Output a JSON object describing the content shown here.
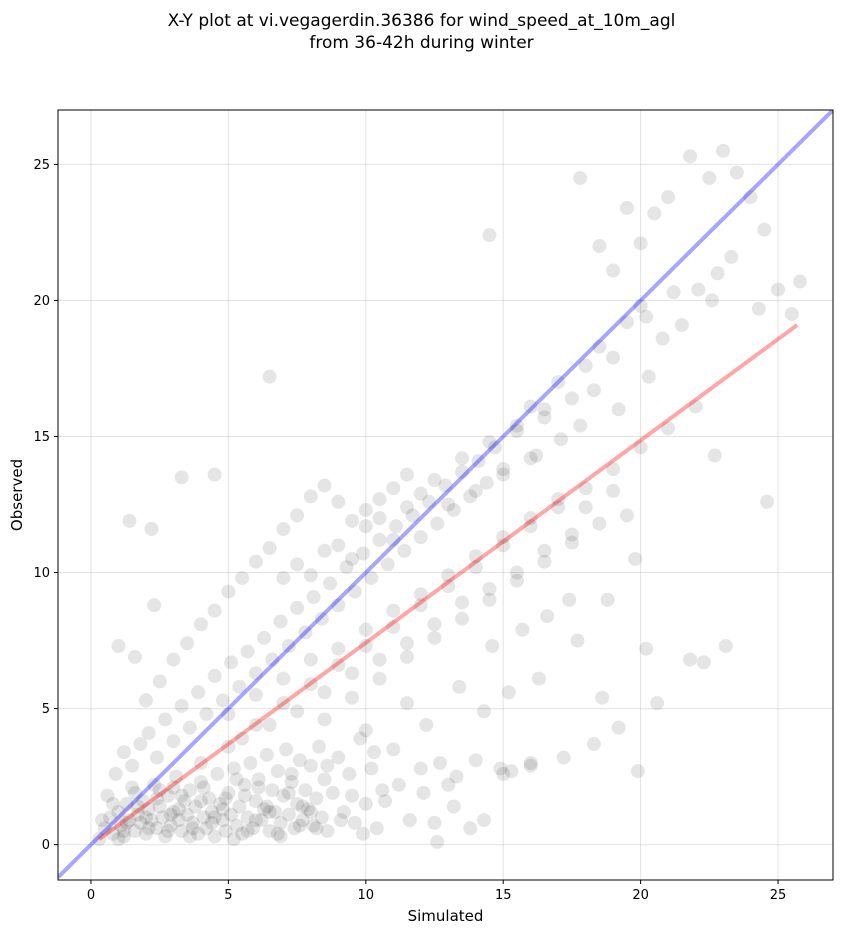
{
  "chart_data": {
    "type": "scatter",
    "title": [
      "X-Y plot at vi.vegagerdin.36386 for wind_speed_at_10m_agl",
      "from 36-42h during winter"
    ],
    "xlabel": "Simulated",
    "ylabel": "Observed",
    "xlim": [
      -1.2,
      27.0
    ],
    "ylim": [
      -1.3,
      27.0
    ],
    "xticks": [
      0,
      5,
      10,
      15,
      20,
      25
    ],
    "yticks": [
      0,
      5,
      10,
      15,
      20,
      25
    ],
    "grid": true,
    "marker_color": "#000000",
    "marker_alpha": 0.1,
    "identity_line": {
      "color": "#0000ff",
      "alpha": 0.35,
      "x": [
        -1.2,
        27.0
      ],
      "y": [
        -1.2,
        27.0
      ]
    },
    "fit_line": {
      "color": "#ff0000",
      "alpha": 0.35,
      "x": [
        0.3,
        25.7
      ],
      "y": [
        0.2,
        19.1
      ]
    },
    "points": [
      [
        0.5,
        0.6
      ],
      [
        0.7,
        1.0
      ],
      [
        0.8,
        0.4
      ],
      [
        1.0,
        1.2
      ],
      [
        1.1,
        0.7
      ],
      [
        1.2,
        0.3
      ],
      [
        1.3,
        1.5
      ],
      [
        1.4,
        0.9
      ],
      [
        1.5,
        2.1
      ],
      [
        1.6,
        0.5
      ],
      [
        1.7,
        1.1
      ],
      [
        1.8,
        0.8
      ],
      [
        1.9,
        1.6
      ],
      [
        2.0,
        0.4
      ],
      [
        2.1,
        1.3
      ],
      [
        2.2,
        0.9
      ],
      [
        2.3,
        2.2
      ],
      [
        2.4,
        0.6
      ],
      [
        2.5,
        1.4
      ],
      [
        2.6,
        1.0
      ],
      [
        2.7,
        0.3
      ],
      [
        2.8,
        1.8
      ],
      [
        2.9,
        0.7
      ],
      [
        3.0,
        1.2
      ],
      [
        3.1,
        2.5
      ],
      [
        3.2,
        0.9
      ],
      [
        3.3,
        0.5
      ],
      [
        3.4,
        1.6
      ],
      [
        3.5,
        1.1
      ],
      [
        3.6,
        2.0
      ],
      [
        3.7,
        0.8
      ],
      [
        3.8,
        1.4
      ],
      [
        3.9,
        0.4
      ],
      [
        4.0,
        2.3
      ],
      [
        4.1,
        1.0
      ],
      [
        4.2,
        0.6
      ],
      [
        4.3,
        1.7
      ],
      [
        4.4,
        1.2
      ],
      [
        4.5,
        0.3
      ],
      [
        4.6,
        2.6
      ],
      [
        4.7,
        1.5
      ],
      [
        4.8,
        0.9
      ],
      [
        4.9,
        0.5
      ],
      [
        5.0,
        1.9
      ],
      [
        5.1,
        1.1
      ],
      [
        5.2,
        2.8
      ],
      [
        5.3,
        0.7
      ],
      [
        5.4,
        1.4
      ],
      [
        5.5,
        0.4
      ],
      [
        5.6,
        2.2
      ],
      [
        5.7,
        1.0
      ],
      [
        5.8,
        3.0
      ],
      [
        5.9,
        0.6
      ],
      [
        6.0,
        1.6
      ],
      [
        6.1,
        2.4
      ],
      [
        6.2,
        0.9
      ],
      [
        6.3,
        1.3
      ],
      [
        6.4,
        3.3
      ],
      [
        6.5,
        0.5
      ],
      [
        6.6,
        2.0
      ],
      [
        6.7,
        1.2
      ],
      [
        6.8,
        2.7
      ],
      [
        6.9,
        0.8
      ],
      [
        7.0,
        1.8
      ],
      [
        7.1,
        3.5
      ],
      [
        7.2,
        1.1
      ],
      [
        7.3,
        2.3
      ],
      [
        7.4,
        0.6
      ],
      [
        7.5,
        1.5
      ],
      [
        7.6,
        3.1
      ],
      [
        7.7,
        0.9
      ],
      [
        7.8,
        2.0
      ],
      [
        7.9,
        1.3
      ],
      [
        8.0,
        2.9
      ],
      [
        8.1,
        0.7
      ],
      [
        8.2,
        1.7
      ],
      [
        8.3,
        3.6
      ],
      [
        8.4,
        1.0
      ],
      [
        8.5,
        2.4
      ],
      [
        8.6,
        0.5
      ],
      [
        8.8,
        1.9
      ],
      [
        9.0,
        3.2
      ],
      [
        9.2,
        1.2
      ],
      [
        9.4,
        2.6
      ],
      [
        9.6,
        0.8
      ],
      [
        9.8,
        3.9
      ],
      [
        10.0,
        1.5
      ],
      [
        10.2,
        2.8
      ],
      [
        10.4,
        0.6
      ],
      [
        10.6,
        2.0
      ],
      [
        0.3,
        0.2
      ],
      [
        0.6,
        1.8
      ],
      [
        0.9,
        2.6
      ],
      [
        1.2,
        3.4
      ],
      [
        1.5,
        2.9
      ],
      [
        1.8,
        3.7
      ],
      [
        2.1,
        4.1
      ],
      [
        2.4,
        3.2
      ],
      [
        2.7,
        4.6
      ],
      [
        3.0,
        3.8
      ],
      [
        3.3,
        5.1
      ],
      [
        3.6,
        4.3
      ],
      [
        3.9,
        5.6
      ],
      [
        4.2,
        4.8
      ],
      [
        4.5,
        6.2
      ],
      [
        4.8,
        5.3
      ],
      [
        5.1,
        6.7
      ],
      [
        5.4,
        5.8
      ],
      [
        5.7,
        7.1
      ],
      [
        6.0,
        6.3
      ],
      [
        6.3,
        7.6
      ],
      [
        6.6,
        6.8
      ],
      [
        6.9,
        8.2
      ],
      [
        7.2,
        7.3
      ],
      [
        7.5,
        8.7
      ],
      [
        7.8,
        7.8
      ],
      [
        8.1,
        9.1
      ],
      [
        8.4,
        8.3
      ],
      [
        8.7,
        9.6
      ],
      [
        9.0,
        8.8
      ],
      [
        9.3,
        10.2
      ],
      [
        9.6,
        9.3
      ],
      [
        9.9,
        10.7
      ],
      [
        10.2,
        9.8
      ],
      [
        10.5,
        11.2
      ],
      [
        10.8,
        10.3
      ],
      [
        11.1,
        11.7
      ],
      [
        11.4,
        10.8
      ],
      [
        11.7,
        12.1
      ],
      [
        12.0,
        11.3
      ],
      [
        12.3,
        12.6
      ],
      [
        12.6,
        11.8
      ],
      [
        12.9,
        13.2
      ],
      [
        13.2,
        12.3
      ],
      [
        13.5,
        13.7
      ],
      [
        13.8,
        12.8
      ],
      [
        14.1,
        14.1
      ],
      [
        14.4,
        13.3
      ],
      [
        14.7,
        14.6
      ],
      [
        15.0,
        13.8
      ],
      [
        2.0,
        5.3
      ],
      [
        2.5,
        6.0
      ],
      [
        3.0,
        6.8
      ],
      [
        3.5,
        7.4
      ],
      [
        4.0,
        8.1
      ],
      [
        4.5,
        8.6
      ],
      [
        5.0,
        9.3
      ],
      [
        5.5,
        9.8
      ],
      [
        6.0,
        10.4
      ],
      [
        6.5,
        10.9
      ],
      [
        7.0,
        11.6
      ],
      [
        7.5,
        12.1
      ],
      [
        8.0,
        12.8
      ],
      [
        8.5,
        13.2
      ],
      [
        9.0,
        12.6
      ],
      [
        9.5,
        11.9
      ],
      [
        10.0,
        12.3
      ],
      [
        10.5,
        12.7
      ],
      [
        11.0,
        13.1
      ],
      [
        11.5,
        13.6
      ],
      [
        3.0,
        2.1
      ],
      [
        4.0,
        3.0
      ],
      [
        5.0,
        3.6
      ],
      [
        6.0,
        4.4
      ],
      [
        7.0,
        5.2
      ],
      [
        8.0,
        5.9
      ],
      [
        9.0,
        6.6
      ],
      [
        10.0,
        7.3
      ],
      [
        11.0,
        8.0
      ],
      [
        12.0,
        8.8
      ],
      [
        13.0,
        9.5
      ],
      [
        14.0,
        10.2
      ],
      [
        15.0,
        11.0
      ],
      [
        16.0,
        11.7
      ],
      [
        17.0,
        12.4
      ],
      [
        18.0,
        13.1
      ],
      [
        19.0,
        13.8
      ],
      [
        20.0,
        14.6
      ],
      [
        21.0,
        15.3
      ],
      [
        22.0,
        16.1
      ],
      [
        8.5,
        4.6
      ],
      [
        9.5,
        5.4
      ],
      [
        10.5,
        6.1
      ],
      [
        11.5,
        6.9
      ],
      [
        12.5,
        7.6
      ],
      [
        13.5,
        8.3
      ],
      [
        14.5,
        9.0
      ],
      [
        15.5,
        9.7
      ],
      [
        16.5,
        10.4
      ],
      [
        17.5,
        11.1
      ],
      [
        10.0,
        4.2
      ],
      [
        11.0,
        3.5
      ],
      [
        12.0,
        2.8
      ],
      [
        13.0,
        2.2
      ],
      [
        14.0,
        3.1
      ],
      [
        15.0,
        2.6
      ],
      [
        16.0,
        2.9
      ],
      [
        12.5,
        0.8
      ],
      [
        13.2,
        1.4
      ],
      [
        13.8,
        0.6
      ],
      [
        11.5,
        5.2
      ],
      [
        12.2,
        4.4
      ],
      [
        13.4,
        5.8
      ],
      [
        14.3,
        4.9
      ],
      [
        15.2,
        5.6
      ],
      [
        16.3,
        6.1
      ],
      [
        14.6,
        7.3
      ],
      [
        15.7,
        7.9
      ],
      [
        16.6,
        8.4
      ],
      [
        17.4,
        9.0
      ],
      [
        15.5,
        15.2
      ],
      [
        16.0,
        16.1
      ],
      [
        16.5,
        15.7
      ],
      [
        17.0,
        17.0
      ],
      [
        17.5,
        16.4
      ],
      [
        18.0,
        17.6
      ],
      [
        18.5,
        18.3
      ],
      [
        19.0,
        17.9
      ],
      [
        19.5,
        19.2
      ],
      [
        20.0,
        19.8
      ],
      [
        16.2,
        14.3
      ],
      [
        17.1,
        14.9
      ],
      [
        17.8,
        15.4
      ],
      [
        18.3,
        16.7
      ],
      [
        19.2,
        16.0
      ],
      [
        20.3,
        17.2
      ],
      [
        20.8,
        18.6
      ],
      [
        21.5,
        19.1
      ],
      [
        22.1,
        20.4
      ],
      [
        22.8,
        21.0
      ],
      [
        18.5,
        22.0
      ],
      [
        19.0,
        21.1
      ],
      [
        19.5,
        23.4
      ],
      [
        20.0,
        22.1
      ],
      [
        20.5,
        23.2
      ],
      [
        21.0,
        23.8
      ],
      [
        21.8,
        25.3
      ],
      [
        22.5,
        24.5
      ],
      [
        23.0,
        25.5
      ],
      [
        23.5,
        24.7
      ],
      [
        24.0,
        23.8
      ],
      [
        24.5,
        22.6
      ],
      [
        25.0,
        20.4
      ],
      [
        25.5,
        19.5
      ],
      [
        25.8,
        20.7
      ],
      [
        24.3,
        19.7
      ],
      [
        23.3,
        21.6
      ],
      [
        22.6,
        20.0
      ],
      [
        21.2,
        20.3
      ],
      [
        20.2,
        19.4
      ],
      [
        17.8,
        24.5
      ],
      [
        14.5,
        22.4
      ],
      [
        6.5,
        17.2
      ],
      [
        3.3,
        13.5
      ],
      [
        4.5,
        13.6
      ],
      [
        2.2,
        11.6
      ],
      [
        1.4,
        11.9
      ],
      [
        1.0,
        7.3
      ],
      [
        1.6,
        6.9
      ],
      [
        2.3,
        8.8
      ],
      [
        18.3,
        3.7
      ],
      [
        19.8,
        10.5
      ],
      [
        20.2,
        7.2
      ],
      [
        19.9,
        2.7
      ],
      [
        20.6,
        5.2
      ],
      [
        21.8,
        6.8
      ],
      [
        22.3,
        6.7
      ],
      [
        23.1,
        7.3
      ],
      [
        22.7,
        14.3
      ],
      [
        24.6,
        12.6
      ],
      [
        16.0,
        3.0
      ],
      [
        15.3,
        2.7
      ],
      [
        17.2,
        3.2
      ],
      [
        14.3,
        0.9
      ],
      [
        12.6,
        0.1
      ],
      [
        14.9,
        2.8
      ],
      [
        19.2,
        4.3
      ],
      [
        18.6,
        5.4
      ],
      [
        17.7,
        7.5
      ],
      [
        18.8,
        9.0
      ],
      [
        0.4,
        0.9
      ],
      [
        0.8,
        1.5
      ],
      [
        1.2,
        0.5
      ],
      [
        1.6,
        1.9
      ],
      [
        2.0,
        1.0
      ],
      [
        2.4,
        1.7
      ],
      [
        2.8,
        0.5
      ],
      [
        3.2,
        1.3
      ],
      [
        3.6,
        0.3
      ],
      [
        4.0,
        1.6
      ],
      [
        4.4,
        0.8
      ],
      [
        4.8,
        1.3
      ],
      [
        5.2,
        0.2
      ],
      [
        5.6,
        1.8
      ],
      [
        6.0,
        0.9
      ],
      [
        6.4,
        1.4
      ],
      [
        6.8,
        0.4
      ],
      [
        7.2,
        1.9
      ],
      [
        7.6,
        0.7
      ],
      [
        8.0,
        1.2
      ],
      [
        1.0,
        0.2
      ],
      [
        1.3,
        0.8
      ],
      [
        1.7,
        1.4
      ],
      [
        2.1,
        0.6
      ],
      [
        2.5,
        2.0
      ],
      [
        2.9,
        1.1
      ],
      [
        3.3,
        1.8
      ],
      [
        3.7,
        0.6
      ],
      [
        4.1,
        2.1
      ],
      [
        4.5,
        1.0
      ],
      [
        4.9,
        1.7
      ],
      [
        5.3,
        2.4
      ],
      [
        5.7,
        0.5
      ],
      [
        6.1,
        2.1
      ],
      [
        6.5,
        1.2
      ],
      [
        6.9,
        0.3
      ],
      [
        7.3,
        2.6
      ],
      [
        7.7,
        1.4
      ],
      [
        8.2,
        0.6
      ],
      [
        8.6,
        2.9
      ],
      [
        9.1,
        0.9
      ],
      [
        9.5,
        1.8
      ],
      [
        9.9,
        0.4
      ],
      [
        10.3,
        3.4
      ],
      [
        10.7,
        1.6
      ],
      [
        11.2,
        2.2
      ],
      [
        11.6,
        0.9
      ],
      [
        12.1,
        1.9
      ],
      [
        12.7,
        3.0
      ],
      [
        13.3,
        2.5
      ],
      [
        5.0,
        4.8
      ],
      [
        5.5,
        3.9
      ],
      [
        6.0,
        5.5
      ],
      [
        6.5,
        4.4
      ],
      [
        7.0,
        6.1
      ],
      [
        7.5,
        4.9
      ],
      [
        8.0,
        6.8
      ],
      [
        8.5,
        5.6
      ],
      [
        9.0,
        7.2
      ],
      [
        9.5,
        6.3
      ],
      [
        10.0,
        7.9
      ],
      [
        10.5,
        6.8
      ],
      [
        11.0,
        8.6
      ],
      [
        11.5,
        7.4
      ],
      [
        12.0,
        9.2
      ],
      [
        12.5,
        8.1
      ],
      [
        13.0,
        9.9
      ],
      [
        13.5,
        8.9
      ],
      [
        14.0,
        10.6
      ],
      [
        14.5,
        9.4
      ],
      [
        15.0,
        11.3
      ],
      [
        15.5,
        10.0
      ],
      [
        16.0,
        12.0
      ],
      [
        16.5,
        10.8
      ],
      [
        17.0,
        12.7
      ],
      [
        17.5,
        11.4
      ],
      [
        18.0,
        12.4
      ],
      [
        18.5,
        11.8
      ],
      [
        19.0,
        13.0
      ],
      [
        19.5,
        12.1
      ],
      [
        7.0,
        9.8
      ],
      [
        7.5,
        10.3
      ],
      [
        8.0,
        9.9
      ],
      [
        8.5,
        10.8
      ],
      [
        9.0,
        11.0
      ],
      [
        9.5,
        10.5
      ],
      [
        10.0,
        11.7
      ],
      [
        10.5,
        12.0
      ],
      [
        11.0,
        11.2
      ],
      [
        11.5,
        12.4
      ],
      [
        12.0,
        12.9
      ],
      [
        12.5,
        13.4
      ],
      [
        13.0,
        12.5
      ],
      [
        13.5,
        14.2
      ],
      [
        14.0,
        13.0
      ],
      [
        14.5,
        14.8
      ],
      [
        15.0,
        13.6
      ],
      [
        15.5,
        15.4
      ],
      [
        16.0,
        14.2
      ],
      [
        16.5,
        16.0
      ]
    ]
  }
}
